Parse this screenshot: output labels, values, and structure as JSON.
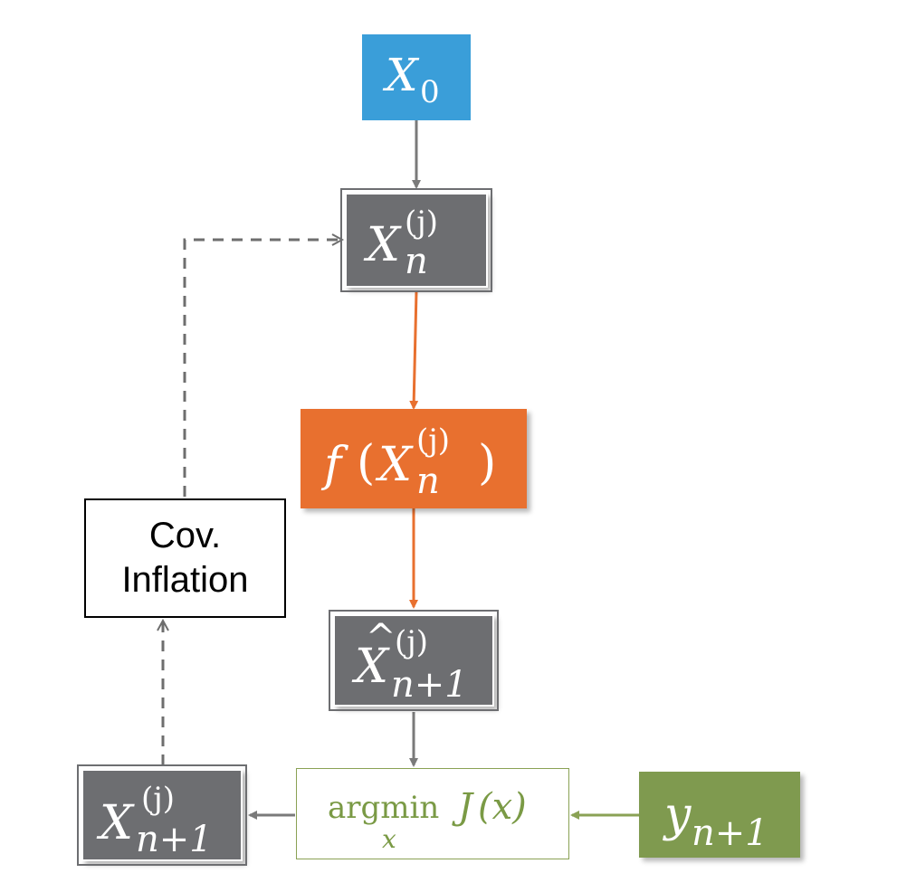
{
  "nodes": {
    "x0": {
      "main": "X",
      "sub": "0"
    },
    "xn": {
      "main": "X",
      "sup": "(j)",
      "sub": "n"
    },
    "fx": {
      "f": "f",
      "open": "(",
      "main": "X",
      "sup": "(j)",
      "sub": "n",
      "close": ")"
    },
    "xhat": {
      "main": "X",
      "hat": "^",
      "sup": "(j)",
      "sub": "n+1"
    },
    "argmin": {
      "op": "argmin",
      "under": "x",
      "func": "J",
      "arg": "(x)"
    },
    "xnext": {
      "main": "X",
      "sup": "(j)",
      "sub": "n+1"
    },
    "y": {
      "main": "y",
      "sub": "n+1"
    },
    "cov": {
      "line1": "Cov.",
      "line2": "Inflation"
    }
  },
  "colors": {
    "blue": "#3a9ed9",
    "gray": "#6d6e71",
    "orange": "#e8702f",
    "green": "#7f9a4f",
    "green_text": "#7a9a45",
    "arrow_gray": "#7a7a7a",
    "dashed": "#6e6e6e"
  }
}
